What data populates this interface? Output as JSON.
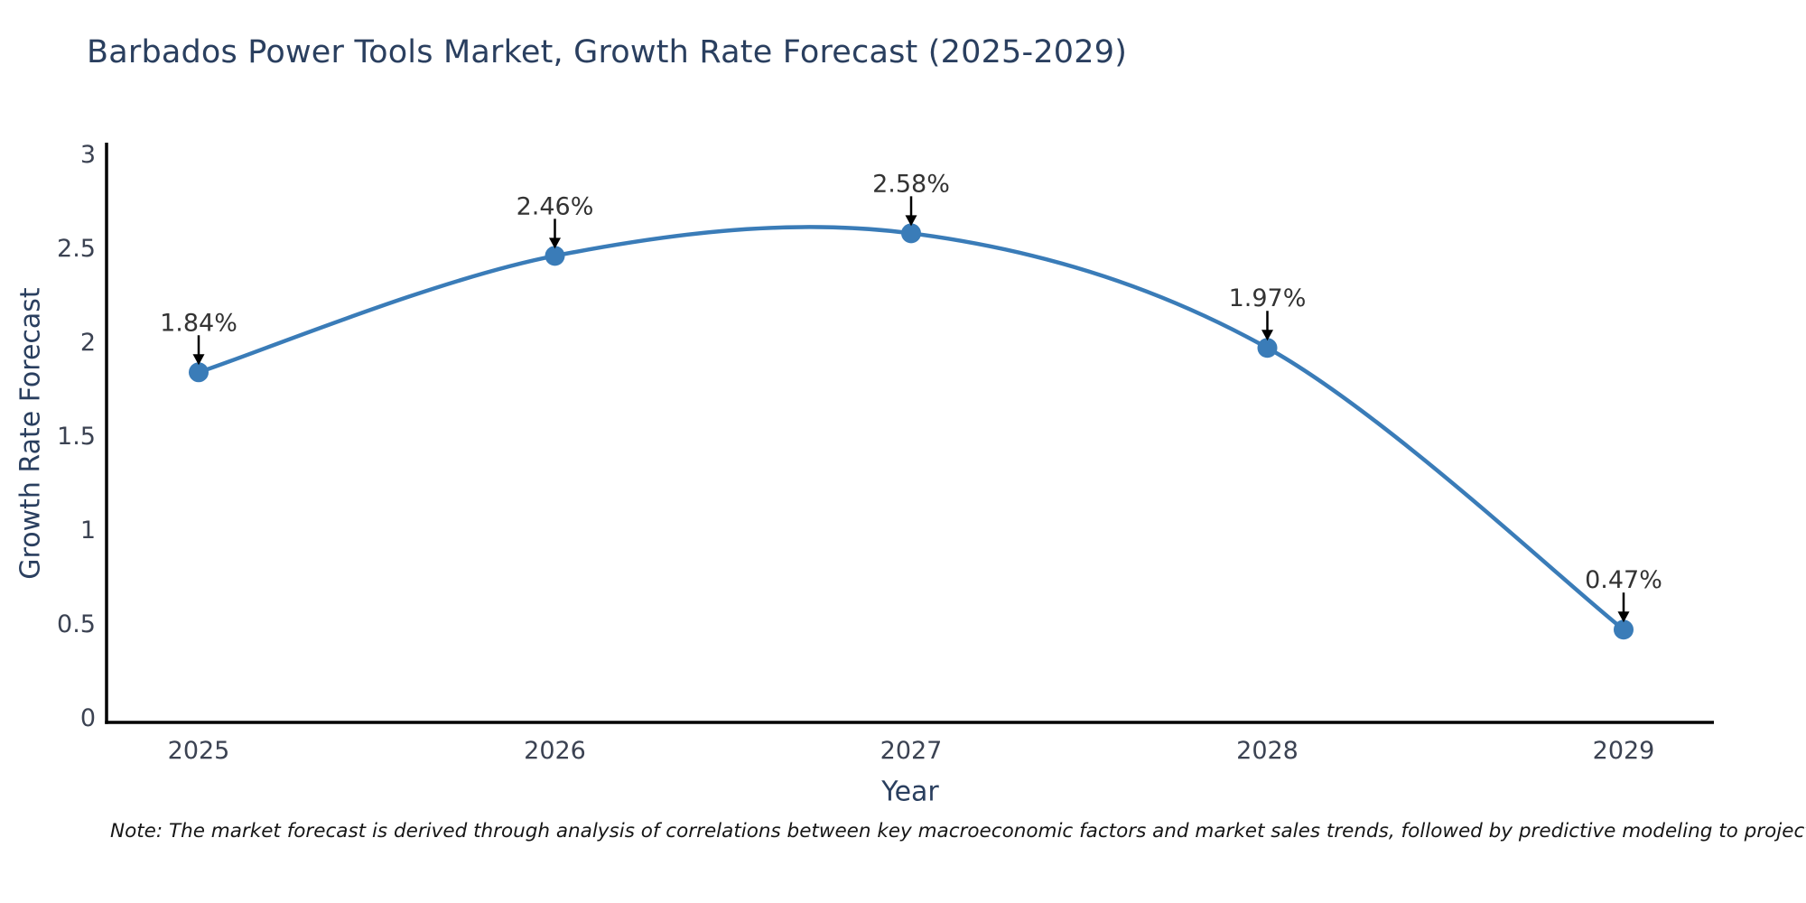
{
  "page": {
    "background": "#ffffff"
  },
  "chart": {
    "note": "Note: The market forecast is derived through analysis of correlations between key macroeconomic factors and market sales trends, followed by predictive modeling to project future sales",
    "colors": {
      "line": "#3a7cb8",
      "marker": "#3a7cb8",
      "axis": "#000000",
      "arrow": "#000000",
      "title_text": "#2a3f5f",
      "axis_title_text": "#2a3f5f",
      "tick_text": "#3b4252",
      "annotation_text": "#333333",
      "note_text": "#161616"
    }
  },
  "chart_data": {
    "type": "line",
    "title": "Barbados Power Tools Market, Growth Rate Forecast (2025-2029)",
    "x": [
      2025,
      2026,
      2027,
      2028,
      2029
    ],
    "x_tick_labels": [
      "2025",
      "2026",
      "2027",
      "2028",
      "2029"
    ],
    "values": [
      1.84,
      2.46,
      2.58,
      1.97,
      0.47
    ],
    "point_labels": [
      "1.84%",
      "2.46%",
      "2.58%",
      "1.97%",
      "0.47%"
    ],
    "xlabel": "Year",
    "ylabel": "Growth Rate Forecast",
    "yticks": [
      0,
      0.5,
      1,
      1.5,
      2,
      2.5,
      3
    ],
    "ytick_labels": [
      "0",
      "0.5",
      "1",
      "1.5",
      "2",
      "2.5",
      "3"
    ],
    "ylim": [
      0,
      3
    ],
    "grid": false,
    "legend": "none",
    "line_shape": "spline",
    "marker": "circle",
    "annotations": "percentage value above each point with a black downward arrow"
  }
}
